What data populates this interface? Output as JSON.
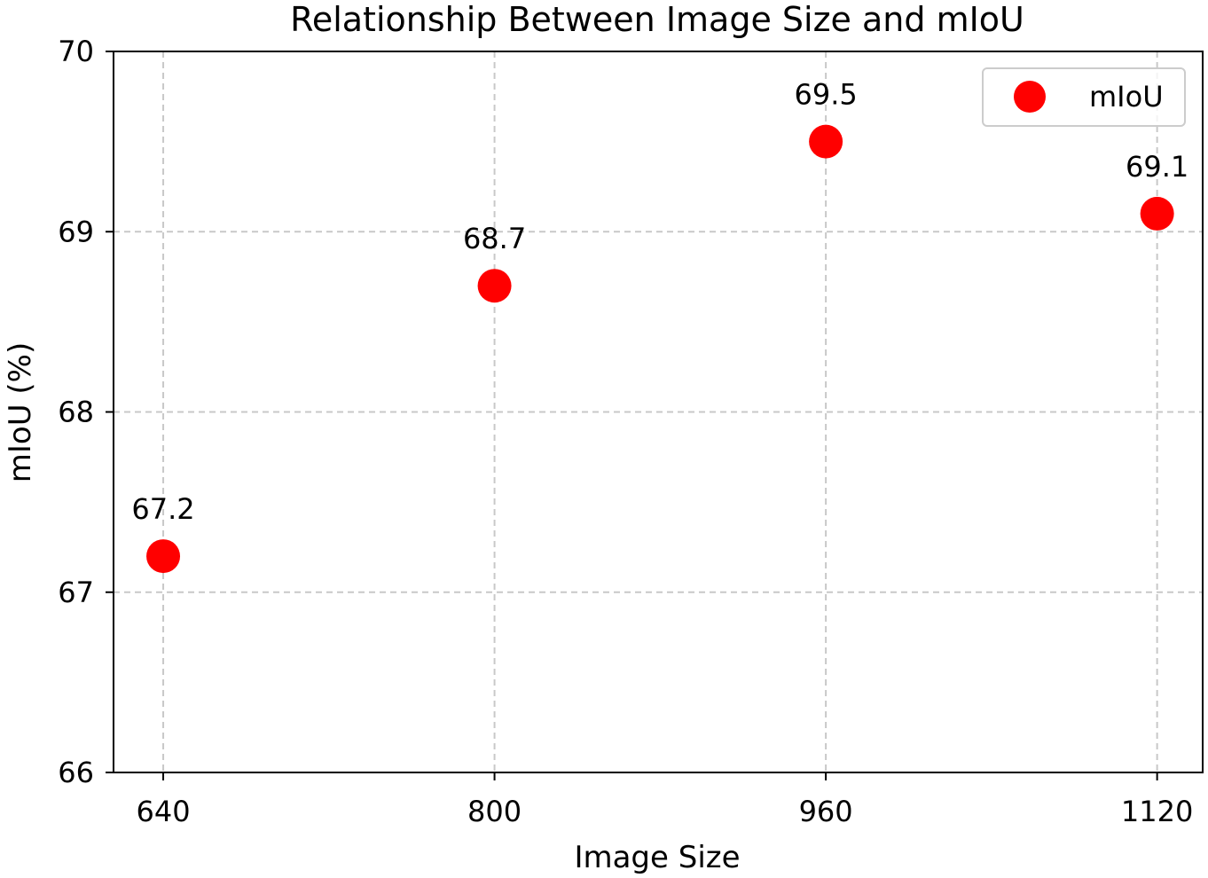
{
  "chart_data": {
    "type": "scatter",
    "title": "Relationship Between Image Size and mIoU",
    "xlabel": "Image Size",
    "ylabel": "mIoU (%)",
    "x": [
      640,
      800,
      960,
      1120
    ],
    "x_tick_labels": [
      "640",
      "800",
      "960",
      "1120"
    ],
    "y_ticks": [
      66,
      67,
      68,
      69,
      70
    ],
    "y_tick_labels": [
      "66",
      "67",
      "68",
      "69",
      "70"
    ],
    "xlim": [
      616,
      1142
    ],
    "ylim": [
      66,
      70
    ],
    "grid": true,
    "legend_position": "top-right",
    "series": [
      {
        "name": "mIoU",
        "color": "#ff0000",
        "values": [
          67.2,
          68.7,
          69.5,
          69.1
        ],
        "data_labels": [
          "67.2",
          "68.7",
          "69.5",
          "69.1"
        ]
      }
    ]
  }
}
